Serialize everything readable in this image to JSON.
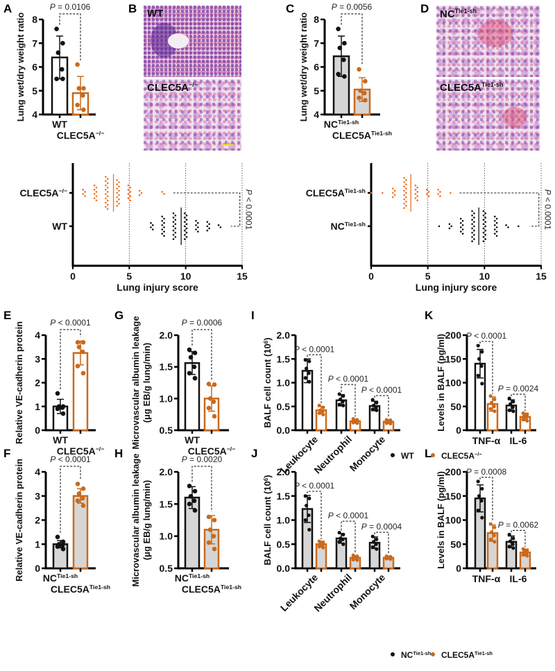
{
  "colors": {
    "black": "#111111",
    "orange": "#c96a1d",
    "orange_dot": "#f07020",
    "gray_fill": "#d6d6d6",
    "white": "#ffffff"
  },
  "panel_letters": [
    "A",
    "B",
    "C",
    "D",
    "E",
    "G",
    "I",
    "K",
    "F",
    "H",
    "J",
    "L"
  ],
  "histology": {
    "B": {
      "top_label": {
        "base": "WT"
      },
      "bottom_label": {
        "base": "CLEC5A",
        "sup": "−/−"
      }
    },
    "D": {
      "top_label": {
        "base": "NC",
        "sup": "Tie1-sh"
      },
      "bottom_label": {
        "base": "CLEC5A",
        "sup": "Tie1-sh"
      }
    }
  },
  "legends": {
    "IK": [
      {
        "label": {
          "base": "WT"
        },
        "series": 0
      },
      {
        "label": {
          "base": "CLEC5A",
          "sup": "−/−"
        },
        "series": 1
      }
    ],
    "JL": [
      {
        "label": {
          "base": "NC",
          "sup": "Tie1-sh"
        },
        "series": 0
      },
      {
        "label": {
          "base": "CLEC5A",
          "sup": "Tie1-sh"
        },
        "series": 1
      }
    ]
  },
  "chart_data": [
    {
      "id": "A",
      "type": "bar",
      "ylabel": [
        "Lung wet/dry weight ratio"
      ],
      "ylim": [
        4,
        8
      ],
      "yticks": [
        "4",
        "5",
        "6",
        "7",
        "8"
      ],
      "tick_step": 1,
      "filled": false,
      "categories": [
        {
          "base": "WT"
        },
        {
          "base": "CLEC5A",
          "sup": "−/−"
        }
      ],
      "bars": [
        {
          "cat": 0,
          "series": 0,
          "mean": 6.4,
          "sd": 0.9,
          "points": [
            7.6,
            7.0,
            6.6,
            5.9,
            5.5,
            5.5
          ]
        },
        {
          "cat": 1,
          "series": 1,
          "mean": 4.9,
          "sd": 0.7,
          "points": [
            6.1,
            5.1,
            5.1,
            4.8,
            4.4,
            4.2
          ]
        }
      ],
      "comparisons": [
        {
          "bars": [
            0,
            1
          ],
          "p": "P = 0.0106"
        }
      ]
    },
    {
      "id": "C",
      "type": "bar",
      "ylabel": [
        "Lung wet/dry weight ratio"
      ],
      "ylim": [
        4,
        8
      ],
      "yticks": [
        "4",
        "5",
        "6",
        "7",
        "8"
      ],
      "tick_step": 1,
      "filled": true,
      "categories": [
        {
          "base": "NC",
          "sup": "Tie1-sh"
        },
        {
          "base": "CLEC5A",
          "sup": "Tie1-sh"
        }
      ],
      "bars": [
        {
          "cat": 0,
          "series": 0,
          "mean": 6.45,
          "sd": 0.85,
          "points": [
            7.6,
            7.0,
            6.8,
            6.3,
            5.7,
            5.6
          ]
        },
        {
          "cat": 1,
          "series": 1,
          "mean": 5.05,
          "sd": 0.5,
          "points": [
            5.9,
            5.4,
            5.0,
            4.9,
            4.7,
            4.6
          ]
        }
      ],
      "comparisons": [
        {
          "bars": [
            0,
            1
          ],
          "p": "P = 0.0056"
        }
      ]
    },
    {
      "id": "injury-left",
      "type": "scatter",
      "xlabel": "Lung injury score",
      "xlim": [
        0,
        15
      ],
      "xticks": [
        "0",
        "5",
        "10",
        "15"
      ],
      "p": "P < 0.0001",
      "rows": [
        {
          "label": {
            "base": "CLEC5A",
            "sup": "−/−"
          },
          "series": 1,
          "median": 3.6,
          "counts": {
            "1": 4,
            "2": 8,
            "3": 16,
            "4": 13,
            "5": 8,
            "6": 3,
            "8": 2
          }
        },
        {
          "label": {
            "base": "WT"
          },
          "series": 0,
          "median": 9.6,
          "counts": {
            "7": 4,
            "8": 10,
            "9": 13,
            "10": 13,
            "11": 6,
            "12": 5,
            "13": 2
          }
        }
      ]
    },
    {
      "id": "injury-right",
      "type": "scatter",
      "xlabel": "Lung injury score",
      "xlim": [
        0,
        15
      ],
      "xticks": [
        "0",
        "5",
        "10",
        "15"
      ],
      "p": "P < 0.0001",
      "rows": [
        {
          "label": {
            "base": "CLEC5A",
            "sup": "Tie1-sh"
          },
          "series": 1,
          "median": 3.5,
          "counts": {
            "0": 1,
            "1": 1,
            "2": 5,
            "3": 15,
            "4": 8,
            "5": 4,
            "6": 4,
            "7": 1
          }
        },
        {
          "label": {
            "base": "NC",
            "sup": "Tie1-sh"
          },
          "series": 0,
          "median": 9.5,
          "counts": {
            "6": 1,
            "7": 3,
            "8": 8,
            "9": 15,
            "10": 15,
            "11": 10,
            "12": 2,
            "13": 1
          }
        }
      ]
    },
    {
      "id": "E",
      "type": "bar",
      "ylabel": [
        "Relative VE-cadherin protein"
      ],
      "ylim": [
        0,
        4
      ],
      "yticks": [
        "0",
        "1",
        "2",
        "3",
        "4"
      ],
      "tick_step": 1,
      "filled": false,
      "categories": [
        {
          "base": "WT"
        },
        {
          "base": "CLEC5A",
          "sup": "−/−"
        }
      ],
      "bars": [
        {
          "cat": 0,
          "series": 0,
          "mean": 1.0,
          "sd": 0.3,
          "points": [
            1.55,
            1.0,
            1.0,
            0.95,
            0.9,
            0.7
          ]
        },
        {
          "cat": 1,
          "series": 1,
          "mean": 3.25,
          "sd": 0.5,
          "points": [
            3.7,
            3.7,
            3.5,
            3.3,
            2.7,
            2.4
          ]
        }
      ],
      "comparisons": [
        {
          "bars": [
            0,
            1
          ],
          "p": "P < 0.0001"
        }
      ]
    },
    {
      "id": "G",
      "type": "bar",
      "ylabel": [
        "Microvascular albumin leakage",
        "(μg EB/g lung/min)"
      ],
      "ylim": [
        0.5,
        2.0
      ],
      "yticks": [
        "0.5",
        "1.0",
        "1.5",
        "2.0"
      ],
      "tick_step": 0.5,
      "filled": false,
      "categories": [
        {
          "base": "WT"
        },
        {
          "base": "CLEC5A",
          "sup": "−/−"
        }
      ],
      "bars": [
        {
          "cat": 0,
          "series": 0,
          "mean": 1.56,
          "sd": 0.18,
          "points": [
            1.77,
            1.72,
            1.65,
            1.5,
            1.4,
            1.32
          ]
        },
        {
          "cat": 1,
          "series": 1,
          "mean": 1.0,
          "sd": 0.2,
          "points": [
            1.23,
            1.22,
            1.0,
            0.95,
            0.85,
            0.72
          ]
        }
      ],
      "comparisons": [
        {
          "bars": [
            0,
            1
          ],
          "p": "P = 0.0006"
        }
      ]
    },
    {
      "id": "I",
      "type": "bar",
      "ylabel": [
        "BALF cell count (10",
        "6",
        ")"
      ],
      "ylim": [
        0,
        2
      ],
      "yticks": [
        "0.0",
        "0.5",
        "1.0",
        "1.5",
        "2.0"
      ],
      "tick_step": 0.5,
      "filled": false,
      "categories": [
        {
          "base": "Leukocyte"
        },
        {
          "base": "Neutrophil"
        },
        {
          "base": "Monocyte"
        }
      ],
      "bars": [
        {
          "cat": 0,
          "series": 0,
          "mean": 1.25,
          "sd": 0.25,
          "points": [
            1.48,
            1.45,
            1.3,
            1.2,
            1.1,
            1.02
          ]
        },
        {
          "cat": 0,
          "series": 1,
          "mean": 0.42,
          "sd": 0.08,
          "points": [
            0.52,
            0.48,
            0.42,
            0.4,
            0.36,
            0.33
          ]
        },
        {
          "cat": 1,
          "series": 0,
          "mean": 0.63,
          "sd": 0.12,
          "points": [
            0.76,
            0.72,
            0.65,
            0.6,
            0.54,
            0.52
          ]
        },
        {
          "cat": 1,
          "series": 1,
          "mean": 0.19,
          "sd": 0.04,
          "points": [
            0.24,
            0.22,
            0.2,
            0.18,
            0.16,
            0.15
          ]
        },
        {
          "cat": 2,
          "series": 0,
          "mean": 0.51,
          "sd": 0.1,
          "points": [
            0.64,
            0.58,
            0.52,
            0.48,
            0.44,
            0.42
          ]
        },
        {
          "cat": 2,
          "series": 1,
          "mean": 0.18,
          "sd": 0.04,
          "points": [
            0.22,
            0.21,
            0.19,
            0.17,
            0.15,
            0.14
          ]
        }
      ],
      "comparisons": [
        {
          "bars": [
            0,
            1
          ],
          "p": "P < 0.0001"
        },
        {
          "bars": [
            2,
            3
          ],
          "p": "P < 0.0001"
        },
        {
          "bars": [
            4,
            5
          ],
          "p": "P < 0.0001"
        }
      ]
    },
    {
      "id": "K",
      "type": "bar",
      "ylabel": [
        "Levels in BALF (pg/ml)"
      ],
      "ylim": [
        0,
        200
      ],
      "yticks": [
        "0",
        "50",
        "100",
        "150",
        "200"
      ],
      "tick_step": 50,
      "filled": false,
      "categories": [
        {
          "base": "TNF-α"
        },
        {
          "base": "IL-6"
        }
      ],
      "bars": [
        {
          "cat": 0,
          "series": 0,
          "mean": 140,
          "sd": 30,
          "points": [
            178,
            165,
            150,
            135,
            115,
            98
          ]
        },
        {
          "cat": 0,
          "series": 1,
          "mean": 55,
          "sd": 15,
          "points": [
            72,
            65,
            58,
            50,
            45,
            40
          ]
        },
        {
          "cat": 1,
          "series": 0,
          "mean": 52,
          "sd": 12,
          "points": [
            67,
            60,
            55,
            48,
            42,
            40
          ]
        },
        {
          "cat": 1,
          "series": 1,
          "mean": 28,
          "sd": 8,
          "points": [
            36,
            33,
            30,
            27,
            23,
            20
          ]
        }
      ],
      "comparisons": [
        {
          "bars": [
            0,
            1
          ],
          "p": "P < 0.0001"
        },
        {
          "bars": [
            2,
            3
          ],
          "p": "P = 0.0024"
        }
      ]
    },
    {
      "id": "F",
      "type": "bar",
      "ylabel": [
        "Relative VE-cadherin protein"
      ],
      "ylim": [
        0,
        4
      ],
      "yticks": [
        "0",
        "1",
        "2",
        "3",
        "4"
      ],
      "tick_step": 1,
      "filled": true,
      "categories": [
        {
          "base": "NC",
          "sup": "Tie1-sh"
        },
        {
          "base": "CLEC5A",
          "sup": "Tie1-sh"
        }
      ],
      "bars": [
        {
          "cat": 0,
          "series": 0,
          "mean": 1.0,
          "sd": 0.15,
          "points": [
            1.3,
            1.1,
            1.0,
            0.95,
            0.9,
            0.8
          ]
        },
        {
          "cat": 1,
          "series": 1,
          "mean": 3.0,
          "sd": 0.3,
          "points": [
            3.5,
            3.3,
            3.1,
            2.9,
            2.8,
            2.6
          ]
        }
      ],
      "comparisons": [
        {
          "bars": [
            0,
            1
          ],
          "p": "P < 0.0001"
        }
      ]
    },
    {
      "id": "H",
      "type": "bar",
      "ylabel": [
        "Microvascular albumin leakage",
        "(μg EB/g lung/min)"
      ],
      "ylim": [
        0.5,
        2.0
      ],
      "yticks": [
        "0.5",
        "1.0",
        "1.5",
        "2.0"
      ],
      "tick_step": 0.5,
      "filled": true,
      "categories": [
        {
          "base": "NC",
          "sup": "Tie1-sh"
        },
        {
          "base": "CLEC5A",
          "sup": "Tie1-sh"
        }
      ],
      "bars": [
        {
          "cat": 0,
          "series": 0,
          "mean": 1.6,
          "sd": 0.17,
          "points": [
            1.78,
            1.7,
            1.62,
            1.55,
            1.5,
            1.4
          ]
        },
        {
          "cat": 1,
          "series": 1,
          "mean": 1.1,
          "sd": 0.22,
          "points": [
            1.3,
            1.25,
            1.1,
            1.0,
            0.9,
            0.8
          ]
        }
      ],
      "comparisons": [
        {
          "bars": [
            0,
            1
          ],
          "p": "P = 0.0020"
        }
      ]
    },
    {
      "id": "J",
      "type": "bar",
      "ylabel": [
        "BALF cell count (10",
        "6",
        ")"
      ],
      "ylim": [
        0,
        2
      ],
      "yticks": [
        "0.0",
        "0.5",
        "1.0",
        "1.5",
        "2.0"
      ],
      "tick_step": 0.5,
      "filled": true,
      "categories": [
        {
          "base": "Leukocyte"
        },
        {
          "base": "Neutrophil"
        },
        {
          "base": "Monocyte"
        }
      ],
      "bars": [
        {
          "cat": 0,
          "series": 0,
          "mean": 1.23,
          "sd": 0.28,
          "points": [
            1.5,
            1.45,
            1.3,
            1.1,
            1.0,
            0.8
          ]
        },
        {
          "cat": 0,
          "series": 1,
          "mean": 0.5,
          "sd": 0.06,
          "points": [
            0.56,
            0.54,
            0.5,
            0.48,
            0.45,
            0.43
          ]
        },
        {
          "cat": 1,
          "series": 0,
          "mean": 0.62,
          "sd": 0.1,
          "points": [
            0.74,
            0.7,
            0.62,
            0.6,
            0.55,
            0.5
          ]
        },
        {
          "cat": 1,
          "series": 1,
          "mean": 0.22,
          "sd": 0.04,
          "points": [
            0.27,
            0.25,
            0.22,
            0.2,
            0.18,
            0.17
          ]
        },
        {
          "cat": 2,
          "series": 0,
          "mean": 0.53,
          "sd": 0.12,
          "points": [
            0.66,
            0.6,
            0.55,
            0.5,
            0.44,
            0.4
          ]
        },
        {
          "cat": 2,
          "series": 1,
          "mean": 0.22,
          "sd": 0.03,
          "points": [
            0.25,
            0.24,
            0.22,
            0.21,
            0.2,
            0.19
          ]
        }
      ],
      "comparisons": [
        {
          "bars": [
            0,
            1
          ],
          "p": "P < 0.0001"
        },
        {
          "bars": [
            2,
            3
          ],
          "p": "P < 0.0001"
        },
        {
          "bars": [
            4,
            5
          ],
          "p": "P = 0.0004"
        }
      ]
    },
    {
      "id": "L",
      "type": "bar",
      "ylabel": [
        "Levels in BALF (pg/ml)"
      ],
      "ylim": [
        0,
        200
      ],
      "yticks": [
        "0",
        "50",
        "100",
        "150",
        "200"
      ],
      "tick_step": 50,
      "filled": true,
      "categories": [
        {
          "base": "TNF-α"
        },
        {
          "base": "IL-6"
        }
      ],
      "bars": [
        {
          "cat": 0,
          "series": 0,
          "mean": 145,
          "sd": 28,
          "points": [
            180,
            165,
            150,
            140,
            120,
            105
          ]
        },
        {
          "cat": 0,
          "series": 1,
          "mean": 73,
          "sd": 17,
          "points": [
            92,
            85,
            75,
            68,
            60,
            55
          ]
        },
        {
          "cat": 1,
          "series": 0,
          "mean": 55,
          "sd": 12,
          "points": [
            70,
            62,
            56,
            50,
            45,
            42
          ]
        },
        {
          "cat": 1,
          "series": 1,
          "mean": 33,
          "sd": 7,
          "points": [
            40,
            37,
            34,
            31,
            28,
            26
          ]
        }
      ],
      "comparisons": [
        {
          "bars": [
            0,
            1
          ],
          "p": "P = 0.0008"
        },
        {
          "bars": [
            2,
            3
          ],
          "p": "P = 0.0062"
        }
      ]
    }
  ]
}
